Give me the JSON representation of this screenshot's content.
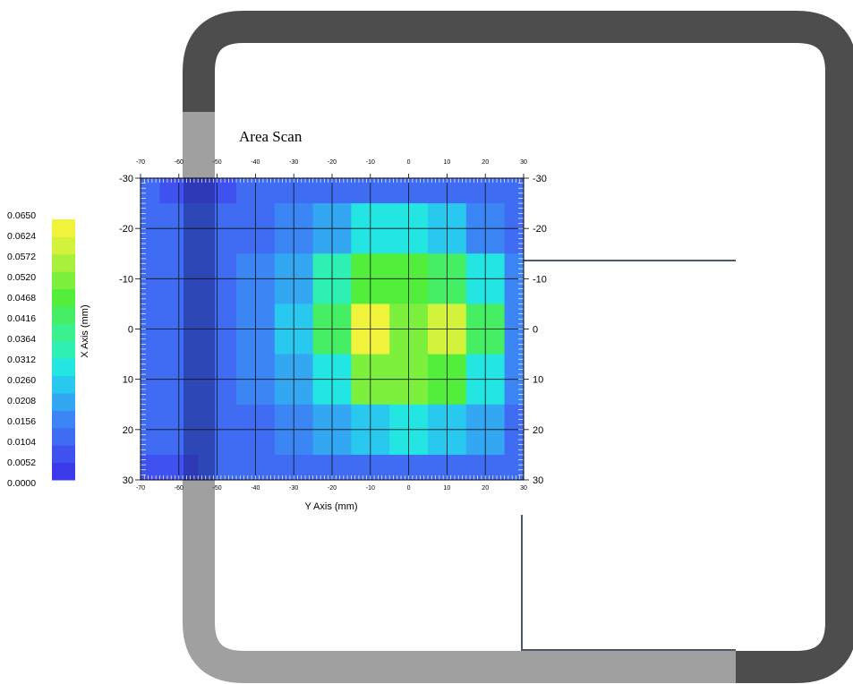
{
  "chart_data": {
    "type": "heatmap",
    "title": "Area Scan",
    "xlabel": "Y Axis (mm)",
    "ylabel": "X Axis (mm)",
    "x": [
      -70,
      -60,
      -50,
      -40,
      -30,
      -20,
      -10,
      0,
      10,
      20,
      30
    ],
    "y": [
      -30,
      -20,
      -10,
      0,
      10,
      20,
      30
    ],
    "xlim": [
      -70,
      30
    ],
    "ylim": [
      -30,
      30
    ],
    "y_axis_direction": "top-to-bottom",
    "grid": true,
    "values": [
      [
        0.01,
        0.008,
        0.008,
        0.01,
        0.01,
        0.012,
        0.013,
        0.013,
        0.012,
        0.012,
        0.01
      ],
      [
        0.01,
        0.01,
        0.01,
        0.012,
        0.014,
        0.02,
        0.028,
        0.03,
        0.022,
        0.015,
        0.012
      ],
      [
        0.01,
        0.01,
        0.012,
        0.014,
        0.02,
        0.034,
        0.046,
        0.044,
        0.04,
        0.028,
        0.015
      ],
      [
        0.01,
        0.01,
        0.012,
        0.015,
        0.024,
        0.04,
        0.062,
        0.052,
        0.06,
        0.04,
        0.016
      ],
      [
        0.01,
        0.01,
        0.012,
        0.014,
        0.02,
        0.03,
        0.048,
        0.05,
        0.044,
        0.03,
        0.015
      ],
      [
        0.01,
        0.01,
        0.01,
        0.012,
        0.014,
        0.02,
        0.024,
        0.028,
        0.024,
        0.018,
        0.012
      ],
      [
        0.008,
        0.008,
        0.01,
        0.01,
        0.012,
        0.012,
        0.013,
        0.013,
        0.013,
        0.012,
        0.01
      ]
    ],
    "colorbar": {
      "min": 0.0,
      "max": 0.065,
      "labels": [
        "0.0650",
        "0.0624",
        "0.0572",
        "0.0520",
        "0.0468",
        "0.0416",
        "0.0364",
        "0.0312",
        "0.0260",
        "0.0208",
        "0.0156",
        "0.0104",
        "0.0052",
        "0.0000"
      ],
      "colors": [
        "#3a3aeb",
        "#3f52f0",
        "#3f6cf2",
        "#3b86f4",
        "#33a7f2",
        "#28c8ef",
        "#23e6e2",
        "#2ff0b3",
        "#3bf08e",
        "#46ee63",
        "#53ee3c",
        "#7cf03c",
        "#a8f03c",
        "#d2f23c",
        "#f0f23c"
      ]
    }
  },
  "colors": {
    "frame_dark": "#4d4d4d",
    "frame_light": "#a0a0a0",
    "overlay_band": "#1a1a6e",
    "steel_line": "#4a5a68"
  }
}
